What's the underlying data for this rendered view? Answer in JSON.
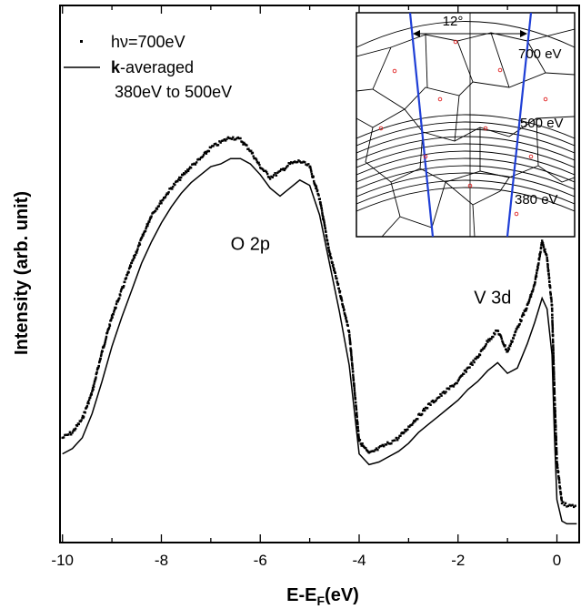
{
  "chart_data": {
    "type": "line",
    "xlabel": "E-E",
    "xlabel_sub": "F",
    "xlabel_unit": "(eV)",
    "ylabel": "Intensity (arb. unit)",
    "xlim": [
      -10.05,
      0.45
    ],
    "ylim": [
      0,
      1
    ],
    "x_ticks": [
      -10,
      -8,
      -6,
      -4,
      -2,
      0
    ],
    "x_tick_labels": [
      "-10",
      "-8",
      "-6",
      "-4",
      "-2",
      "0"
    ],
    "annotations": [
      {
        "text": "O 2p",
        "x": -6.2,
        "y": 0.545
      },
      {
        "text": "V 3d",
        "x": -1.3,
        "y": 0.445
      }
    ],
    "legend": {
      "placement": "top-left",
      "entries": [
        {
          "symbol": "dot",
          "text_main": "hν=700eV"
        },
        {
          "symbol": "line",
          "text_bold": "k",
          "text_main": "-averaged",
          "text_second": "380eV to 500eV"
        }
      ]
    },
    "series": [
      {
        "name": "hν=700eV",
        "style": "dots",
        "x": [
          -10.0,
          -9.8,
          -9.6,
          -9.4,
          -9.2,
          -9.0,
          -8.8,
          -8.6,
          -8.4,
          -8.2,
          -8.0,
          -7.8,
          -7.6,
          -7.4,
          -7.2,
          -7.0,
          -6.8,
          -6.6,
          -6.4,
          -6.2,
          -6.0,
          -5.8,
          -5.6,
          -5.4,
          -5.2,
          -5.0,
          -4.8,
          -4.6,
          -4.4,
          -4.2,
          -4.0,
          -3.8,
          -3.6,
          -3.4,
          -3.2,
          -3.0,
          -2.8,
          -2.6,
          -2.4,
          -2.2,
          -2.0,
          -1.8,
          -1.6,
          -1.4,
          -1.2,
          -1.0,
          -0.8,
          -0.6,
          -0.45,
          -0.3,
          -0.2,
          -0.1,
          -0.05,
          0.0,
          0.1,
          0.2,
          0.4
        ],
        "y": [
          0.195,
          0.205,
          0.23,
          0.28,
          0.355,
          0.42,
          0.47,
          0.52,
          0.565,
          0.61,
          0.635,
          0.66,
          0.68,
          0.7,
          0.715,
          0.735,
          0.745,
          0.755,
          0.75,
          0.73,
          0.7,
          0.68,
          0.69,
          0.705,
          0.71,
          0.7,
          0.64,
          0.54,
          0.47,
          0.39,
          0.19,
          0.165,
          0.175,
          0.185,
          0.195,
          0.215,
          0.235,
          0.255,
          0.27,
          0.285,
          0.3,
          0.325,
          0.345,
          0.375,
          0.395,
          0.355,
          0.4,
          0.44,
          0.48,
          0.56,
          0.53,
          0.44,
          0.28,
          0.15,
          0.075,
          0.07,
          0.068
        ]
      },
      {
        "name": "k-averaged 380eV to 500eV",
        "style": "line",
        "x": [
          -10.0,
          -9.8,
          -9.6,
          -9.4,
          -9.2,
          -9.0,
          -8.8,
          -8.6,
          -8.4,
          -8.2,
          -8.0,
          -7.8,
          -7.6,
          -7.4,
          -7.2,
          -7.0,
          -6.8,
          -6.6,
          -6.4,
          -6.2,
          -6.0,
          -5.8,
          -5.6,
          -5.4,
          -5.2,
          -5.0,
          -4.8,
          -4.6,
          -4.4,
          -4.2,
          -4.0,
          -3.8,
          -3.6,
          -3.4,
          -3.2,
          -3.0,
          -2.8,
          -2.6,
          -2.4,
          -2.2,
          -2.0,
          -1.8,
          -1.6,
          -1.4,
          -1.2,
          -1.0,
          -0.8,
          -0.6,
          -0.45,
          -0.3,
          -0.2,
          -0.1,
          -0.05,
          0.0,
          0.1,
          0.2,
          0.4
        ],
        "y": [
          0.165,
          0.175,
          0.195,
          0.24,
          0.3,
          0.365,
          0.42,
          0.47,
          0.52,
          0.56,
          0.595,
          0.625,
          0.65,
          0.67,
          0.685,
          0.7,
          0.705,
          0.715,
          0.715,
          0.705,
          0.685,
          0.66,
          0.645,
          0.66,
          0.675,
          0.665,
          0.61,
          0.52,
          0.43,
          0.33,
          0.165,
          0.145,
          0.15,
          0.16,
          0.17,
          0.185,
          0.205,
          0.22,
          0.235,
          0.25,
          0.265,
          0.285,
          0.3,
          0.32,
          0.335,
          0.315,
          0.325,
          0.37,
          0.41,
          0.455,
          0.435,
          0.35,
          0.2,
          0.08,
          0.04,
          0.035,
          0.035
        ]
      }
    ],
    "inset": {
      "angle_label": "12°",
      "energy_labels": [
        "700 eV",
        "500 eV",
        "380 eV"
      ]
    }
  }
}
